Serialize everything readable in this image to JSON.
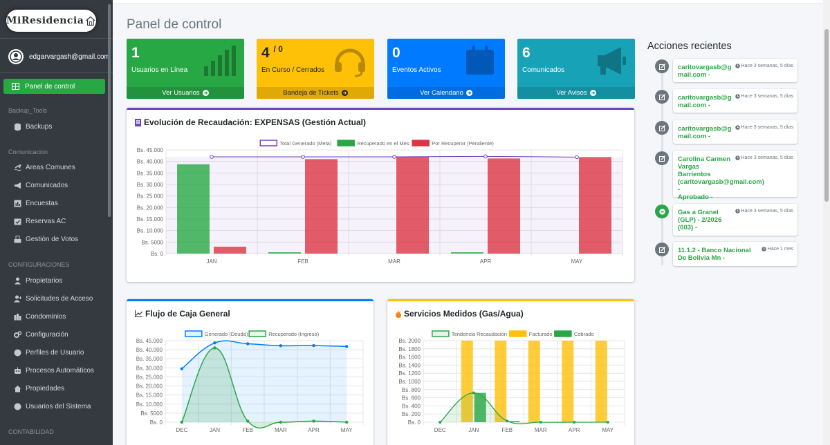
{
  "brand": {
    "name": "MiResidencia"
  },
  "user": {
    "email": "edgarvargash@gmail.com"
  },
  "sidebar": {
    "active": "Panel de control",
    "sections": [
      {
        "header": "Backup_Tools",
        "items": [
          {
            "label": "Backups",
            "icon": "database-icon"
          }
        ]
      },
      {
        "header": "Comunicacion",
        "items": [
          {
            "label": "Areas Comunes",
            "icon": "swimmer-icon"
          },
          {
            "label": "Comunicados",
            "icon": "bullhorn-icon"
          },
          {
            "label": "Encuestas",
            "icon": "poll-icon"
          },
          {
            "label": "Reservas AC",
            "icon": "calendar-check-icon"
          },
          {
            "label": "Gestión de Votos",
            "icon": "vote-icon"
          }
        ]
      },
      {
        "header": "CONFIGURACIONES",
        "items": [
          {
            "label": "Propietarios",
            "icon": "user-icon"
          },
          {
            "label": "Solicitudes de Acceso",
            "icon": "user-plus-icon"
          },
          {
            "label": "Condominios",
            "icon": "city-icon"
          },
          {
            "label": "Configuración",
            "icon": "cogs-icon"
          },
          {
            "label": "Perfiles de Usuario",
            "icon": "circle-icon"
          },
          {
            "label": "Procesos Automáticos",
            "icon": "robot-icon"
          },
          {
            "label": "Propiedades",
            "icon": "home-icon"
          },
          {
            "label": "Usuarios del Sistema",
            "icon": "circle-icon"
          }
        ]
      },
      {
        "header": "CONTABILIDAD",
        "items": []
      }
    ]
  },
  "page": {
    "title": "Panel de control"
  },
  "stats": [
    {
      "number": "1",
      "sup": "",
      "label": "Usuarios en Línea",
      "link": "Ver Usuarios",
      "color": "#28a745",
      "icon": "signal-icon"
    },
    {
      "number": "4",
      "sup": "/ 0",
      "label": "En Curso / Cerrados",
      "link": "Bandeja de Tickets",
      "color": "#ffc107",
      "icon": "headset-icon"
    },
    {
      "number": "0",
      "sup": "",
      "label": "Eventos Activos",
      "link": "Ver Calendario",
      "color": "#007bff",
      "icon": "calendar-icon"
    },
    {
      "number": "6",
      "sup": "",
      "label": "Comunicados",
      "link": "Ver Avisos",
      "color": "#17a2b8",
      "icon": "megaphone-icon"
    }
  ],
  "chart_expensas": {
    "title": "Evolución de Recaudación: EXPENSAS (Gestión Actual)",
    "accent": "#6f42c1",
    "chart_data": {
      "type": "bar",
      "categories": [
        "JAN",
        "FEB",
        "MAR",
        "APR",
        "MAY"
      ],
      "ylim": [
        0,
        45000
      ],
      "ytick_step": 5000,
      "tick_prefix": "Bs. ",
      "series": [
        {
          "name": "Total Generado (Meta)",
          "kind": "line",
          "color": "#6f42c1",
          "values": [
            42000,
            42000,
            42000,
            42200,
            41900
          ]
        },
        {
          "name": "Recuperado en el Mes",
          "kind": "bar",
          "color": "#28a745",
          "values": [
            38800,
            600,
            0,
            600,
            0
          ]
        },
        {
          "name": "Por Recuperar (Pendiente)",
          "kind": "bar",
          "color": "#dc3545",
          "values": [
            3000,
            41000,
            42000,
            41300,
            41900
          ]
        }
      ]
    }
  },
  "chart_flujo": {
    "title": "Flujo de Caja General",
    "accent": "#007bff",
    "chart_data": {
      "type": "area",
      "categories": [
        "DEC",
        "JAN",
        "FEB",
        "MAR",
        "APR",
        "MAY"
      ],
      "ylim": [
        0,
        45000
      ],
      "ytick_step": 5000,
      "tick_prefix": "Bs. ",
      "series": [
        {
          "name": "Generado (Deuda)",
          "color": "#007bff",
          "values": [
            29500,
            43800,
            43300,
            42200,
            42300,
            41800
          ]
        },
        {
          "name": "Recuperado (Ingreso)",
          "color": "#28a745",
          "values": [
            0,
            41000,
            600,
            0,
            600,
            0
          ]
        }
      ]
    }
  },
  "chart_servicios": {
    "title": "Servicios Medidos (Gas/Agua)",
    "accent": "#ffc107",
    "chart_data": {
      "type": "bar",
      "categories": [
        "DEC",
        "JAN",
        "FEB",
        "MAR",
        "APR",
        "MAY"
      ],
      "ylim": [
        0,
        2000
      ],
      "ytick_step": 200,
      "tick_prefix": "Bs. ",
      "series": [
        {
          "name": "Tendencia Recaudación",
          "kind": "line",
          "color": "#28a745",
          "values": [
            0,
            720,
            30,
            0,
            0,
            0
          ]
        },
        {
          "name": "Facturado",
          "kind": "bar",
          "color": "#ffc107",
          "values": [
            null,
            2000,
            2000,
            2000,
            2000,
            2000
          ]
        },
        {
          "name": "Cobrado",
          "kind": "bar",
          "color": "#28a745",
          "values": [
            null,
            720,
            30,
            0,
            0,
            0
          ]
        }
      ]
    }
  },
  "recent": {
    "title": "Acciones recientes",
    "items": [
      {
        "lines": [
          "caritovargasb@g",
          "mail.com -"
        ],
        "time": "Hace 3 semanas, 5 días",
        "icon": "edit-icon",
        "color": "#6c757d"
      },
      {
        "lines": [
          "caritovargasb@g",
          "mail.com -"
        ],
        "time": "Hace 3 semanas, 5 días",
        "icon": "edit-icon",
        "color": "#6c757d"
      },
      {
        "lines": [
          "caritovargasb@g",
          "mail.com -"
        ],
        "time": "Hace 3 semanas, 5 días",
        "icon": "edit-icon",
        "color": "#6c757d"
      },
      {
        "lines": [
          "Carolina Carmen",
          "Vargas",
          "Barrientos",
          "(caritovargasb@gmail.com) -",
          "Aprobado -"
        ],
        "time": "Hace 3 semanas, 5 días",
        "icon": "edit-icon",
        "color": "#6c757d"
      },
      {
        "lines": [
          "Gas a Granel",
          "(GLP) - 2/2026",
          "(003) -"
        ],
        "time": "Hace 3 semanas, 5 días",
        "icon": "minus-circle-icon",
        "color": "#28a745"
      },
      {
        "lines": [
          "11.1.2 - Banco Nacional",
          "De Bolivia Mn -"
        ],
        "time": "Hace 1 mes",
        "icon": "edit-icon",
        "color": "#6c757d"
      }
    ]
  }
}
